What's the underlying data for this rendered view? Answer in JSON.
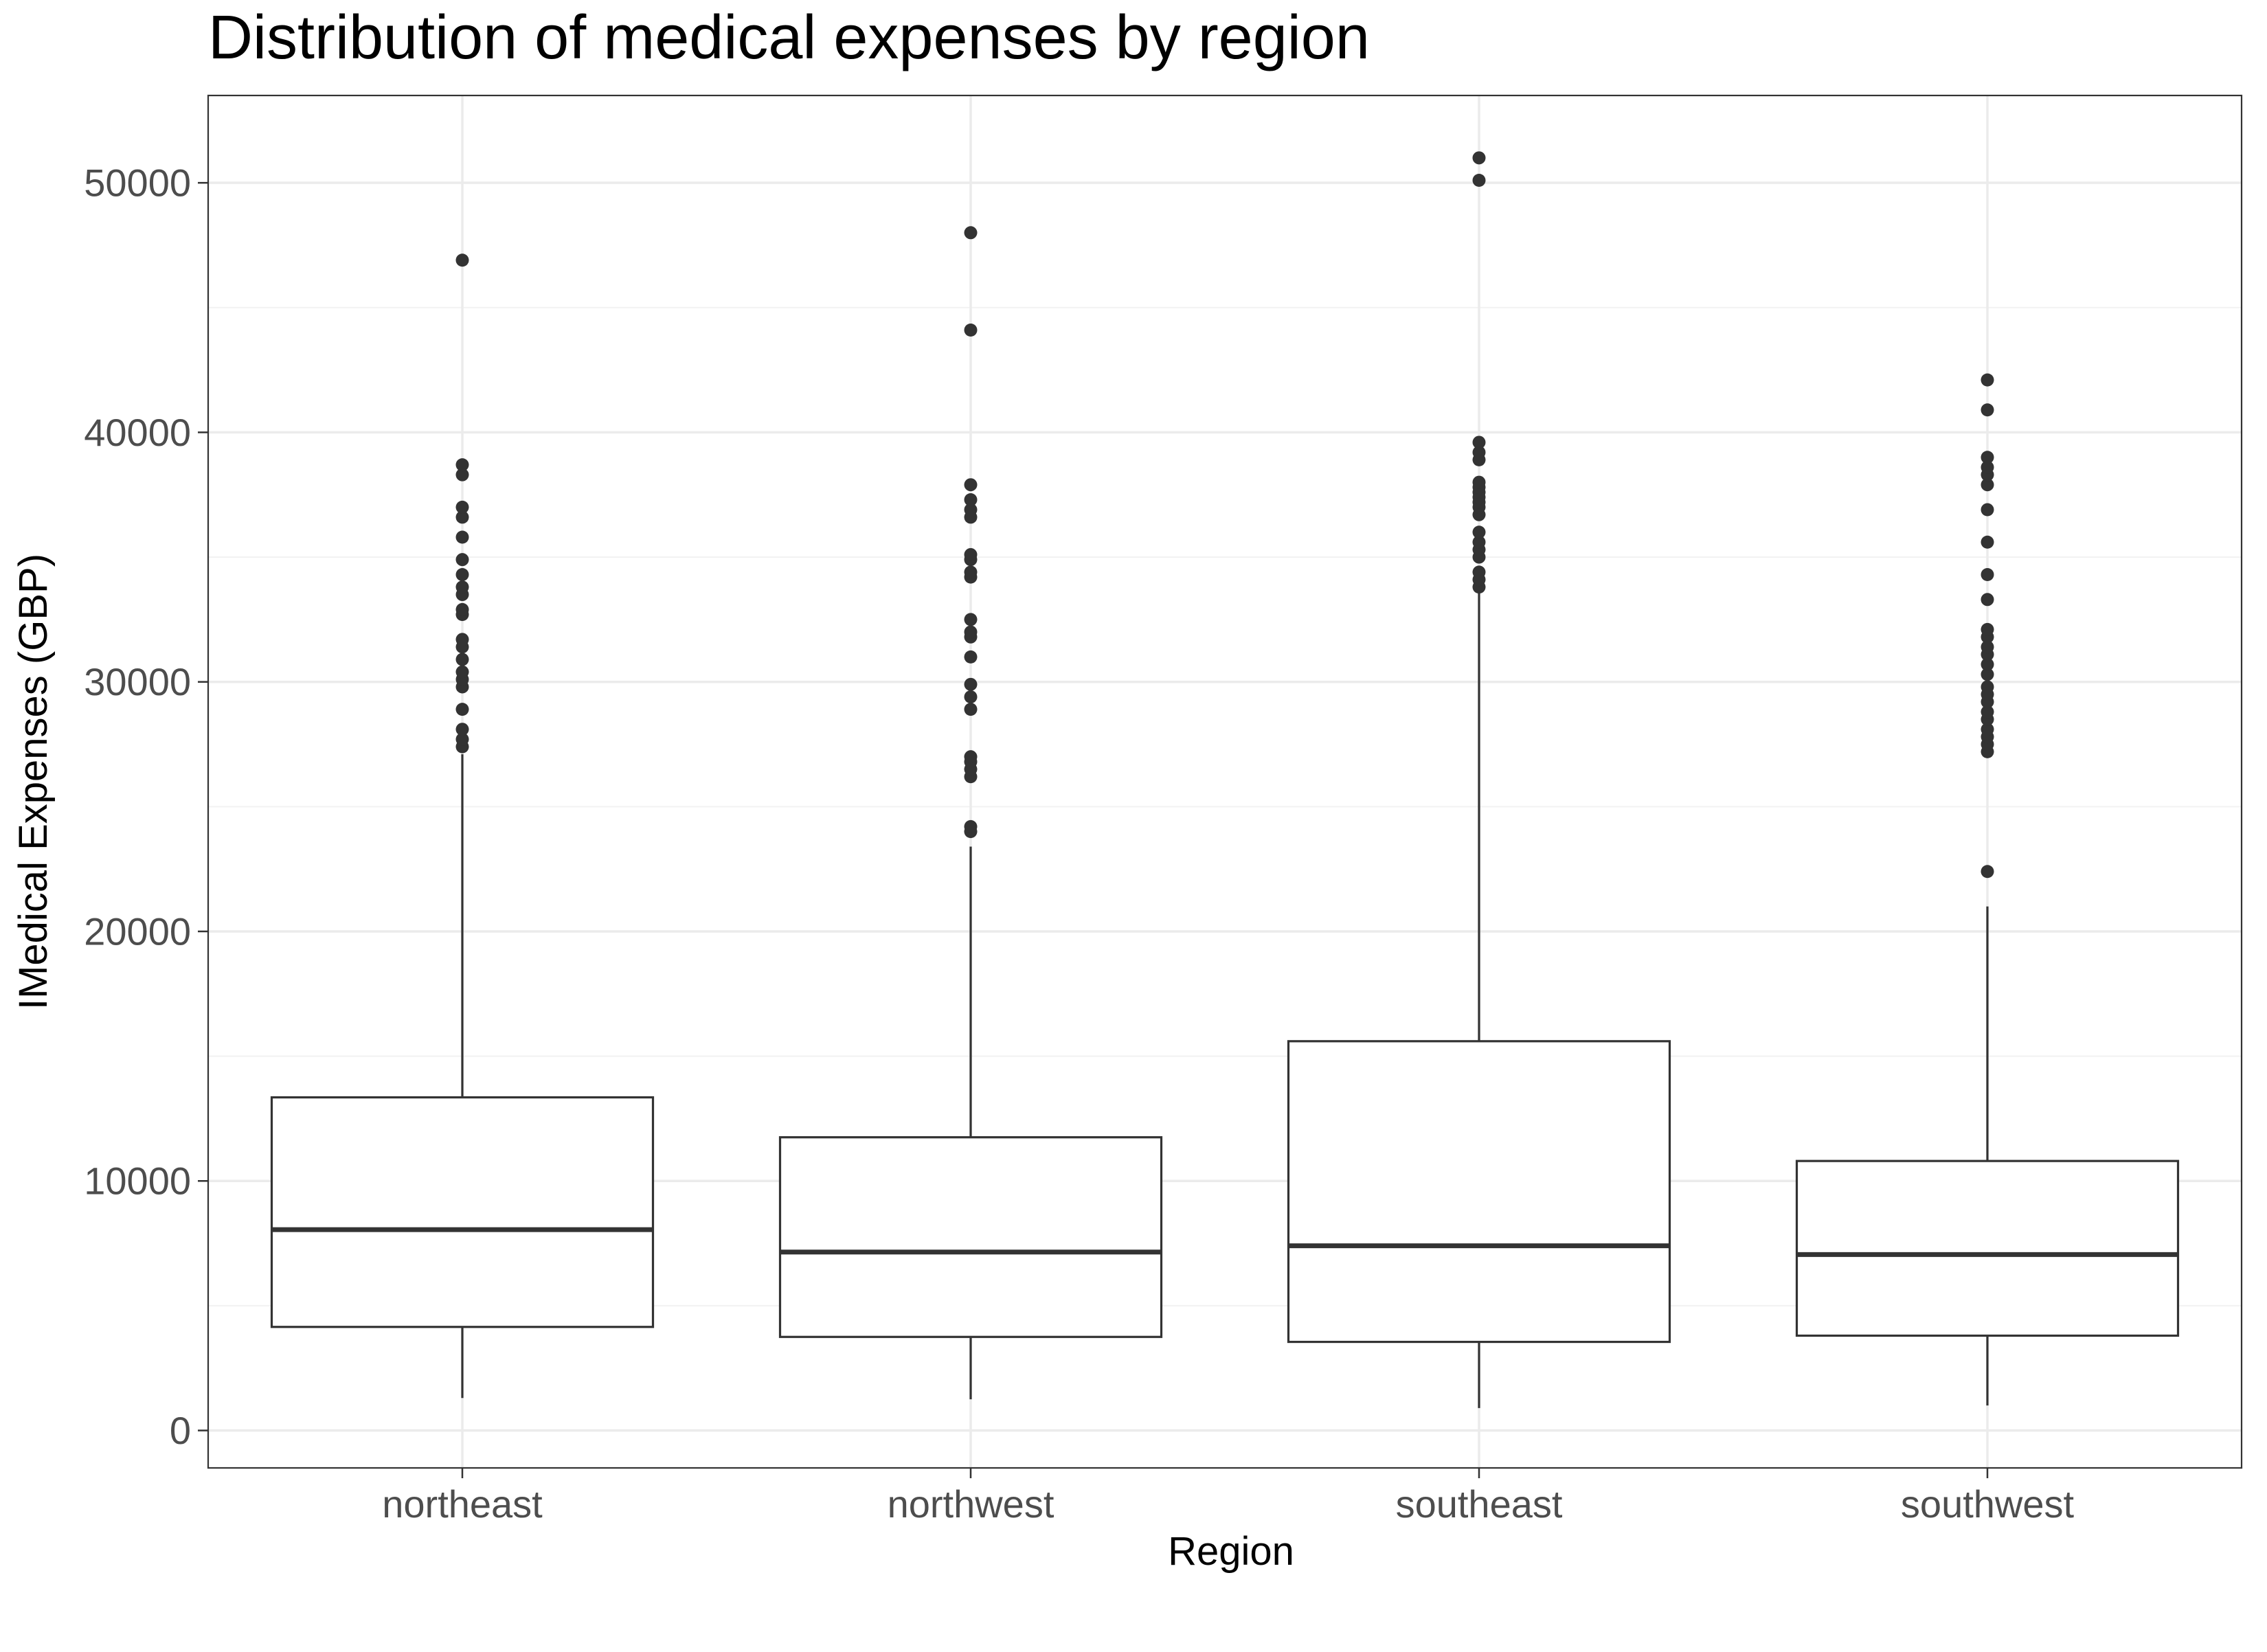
{
  "chart_data": {
    "type": "boxplot",
    "title": "Distribution of medical expenses by region",
    "xlabel": "Region",
    "ylabel": "IMedical Expenses (GBP)",
    "ylim": [
      -1500,
      53500
    ],
    "yticks": [
      0,
      10000,
      20000,
      30000,
      40000,
      50000
    ],
    "yticks_labels": [
      "0",
      "10000",
      "20000",
      "30000",
      "40000",
      "50000"
    ],
    "grid": true,
    "legend": "none",
    "categories": [
      "northeast",
      "northwest",
      "southeast",
      "southwest"
    ],
    "boxes": [
      {
        "category": "northeast",
        "whisker_low": 1300,
        "q1": 4150,
        "median": 8050,
        "q3": 13350,
        "whisker_high": 27100,
        "outliers": [
          27400,
          27700,
          28100,
          28900,
          29800,
          30100,
          30400,
          30900,
          31400,
          31700,
          32700,
          32900,
          33500,
          33800,
          34300,
          34900,
          35800,
          36600,
          37000,
          38300,
          38700,
          46900
        ]
      },
      {
        "category": "northwest",
        "whisker_low": 1250,
        "q1": 3750,
        "median": 7150,
        "q3": 11750,
        "whisker_high": 23400,
        "outliers": [
          24000,
          24200,
          26200,
          26500,
          26800,
          27000,
          28900,
          29400,
          29900,
          31000,
          31800,
          32000,
          32500,
          34200,
          34400,
          34900,
          35100,
          36600,
          36900,
          37300,
          37900,
          44100,
          48000
        ]
      },
      {
        "category": "southeast",
        "whisker_low": 900,
        "q1": 3550,
        "median": 7400,
        "q3": 15600,
        "whisker_high": 33700,
        "outliers": [
          33800,
          34100,
          34400,
          35000,
          35300,
          35600,
          36000,
          36700,
          37000,
          37200,
          37400,
          37600,
          37800,
          38000,
          38900,
          39200,
          39600,
          50100,
          51000
        ]
      },
      {
        "category": "southwest",
        "whisker_low": 1000,
        "q1": 3800,
        "median": 7050,
        "q3": 10800,
        "whisker_high": 21000,
        "outliers": [
          22400,
          27200,
          27500,
          27800,
          28100,
          28500,
          28800,
          29200,
          29500,
          29800,
          30300,
          30700,
          31100,
          31400,
          31800,
          32100,
          33300,
          34300,
          35600,
          36900,
          37900,
          38300,
          38600,
          39000,
          40900,
          42100
        ]
      }
    ]
  }
}
